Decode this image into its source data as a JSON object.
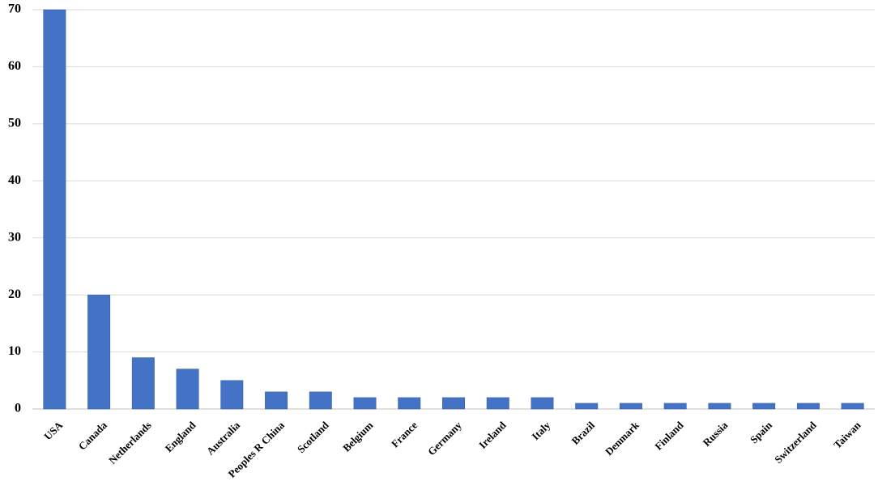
{
  "chart_data": {
    "type": "bar",
    "title": "",
    "xlabel": "",
    "ylabel": "",
    "ylim": [
      0,
      70
    ],
    "yticks": [
      0,
      10,
      20,
      30,
      40,
      50,
      60,
      70
    ],
    "grid": true,
    "categories": [
      "USA",
      "Canada",
      "Netherlands",
      "England",
      "Australia",
      "Peoples R China",
      "Scotland",
      "Belgium",
      "France",
      "Germany",
      "Ireland",
      "Italy",
      "Brazil",
      "Denmark",
      "Finland",
      "Russia",
      "Spain",
      "Switzerland",
      "Taiwan"
    ],
    "values": [
      70,
      20,
      9,
      7,
      5,
      3,
      3,
      2,
      2,
      2,
      2,
      2,
      1,
      1,
      1,
      1,
      1,
      1,
      1
    ],
    "colors": {
      "bar": "#4472c4",
      "bar_edge": "#3a62a8",
      "grid": "#d9d9d9"
    }
  }
}
